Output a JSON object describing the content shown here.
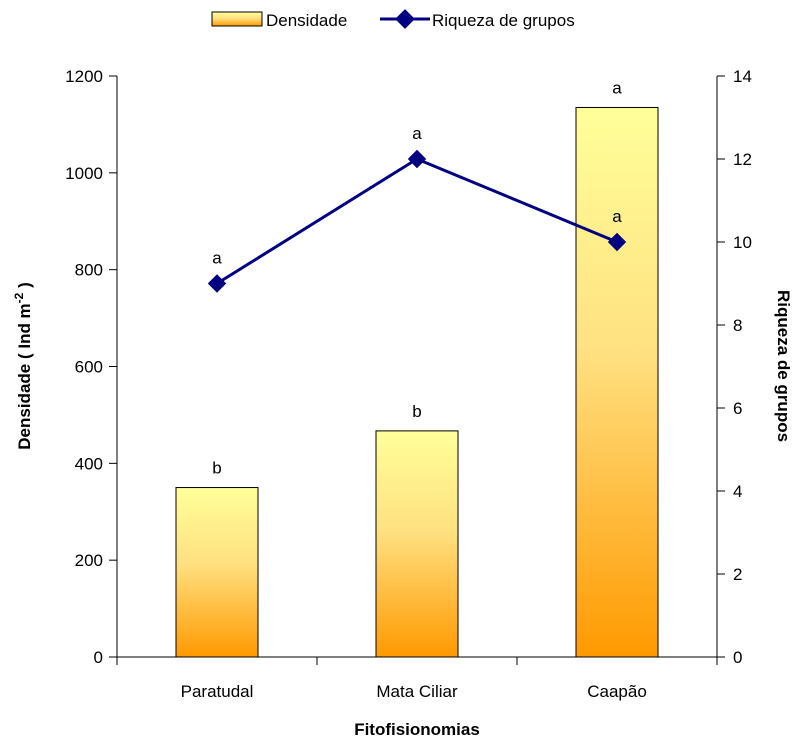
{
  "chart_data": {
    "type": "bar",
    "title": "",
    "xlabel": "Fitofisionomias",
    "ylabel": "Densidade ( Ind m-2 )",
    "ylabel_main": "Densidade ( Ind m",
    "ylabel_sup": "-2",
    "ylabel_tail": " )",
    "y2label": "Riqueza de grupos",
    "categories": [
      "Paratudal",
      "Mata Ciliar",
      "Caapão"
    ],
    "ylim": [
      0,
      1200
    ],
    "yticks": [
      0,
      200,
      400,
      600,
      800,
      1000,
      1200
    ],
    "y2lim": [
      0,
      14
    ],
    "y2ticks": [
      0,
      2,
      4,
      6,
      8,
      10,
      12,
      14
    ],
    "legend_position": "top",
    "series": [
      {
        "name": "Densidade",
        "kind": "bar",
        "axis": "left",
        "values": [
          350,
          467,
          1135
        ],
        "labels": [
          "b",
          "b",
          "a"
        ],
        "colors": {
          "top": "#ffff99",
          "bottom": "#ff9900",
          "stroke": "#000000"
        }
      },
      {
        "name": "Riqueza de grupos",
        "kind": "line",
        "axis": "right",
        "values": [
          9,
          12,
          10
        ],
        "labels": [
          "a",
          "a",
          "a"
        ],
        "colors": {
          "line": "#000080",
          "marker": "#000080"
        }
      }
    ]
  }
}
